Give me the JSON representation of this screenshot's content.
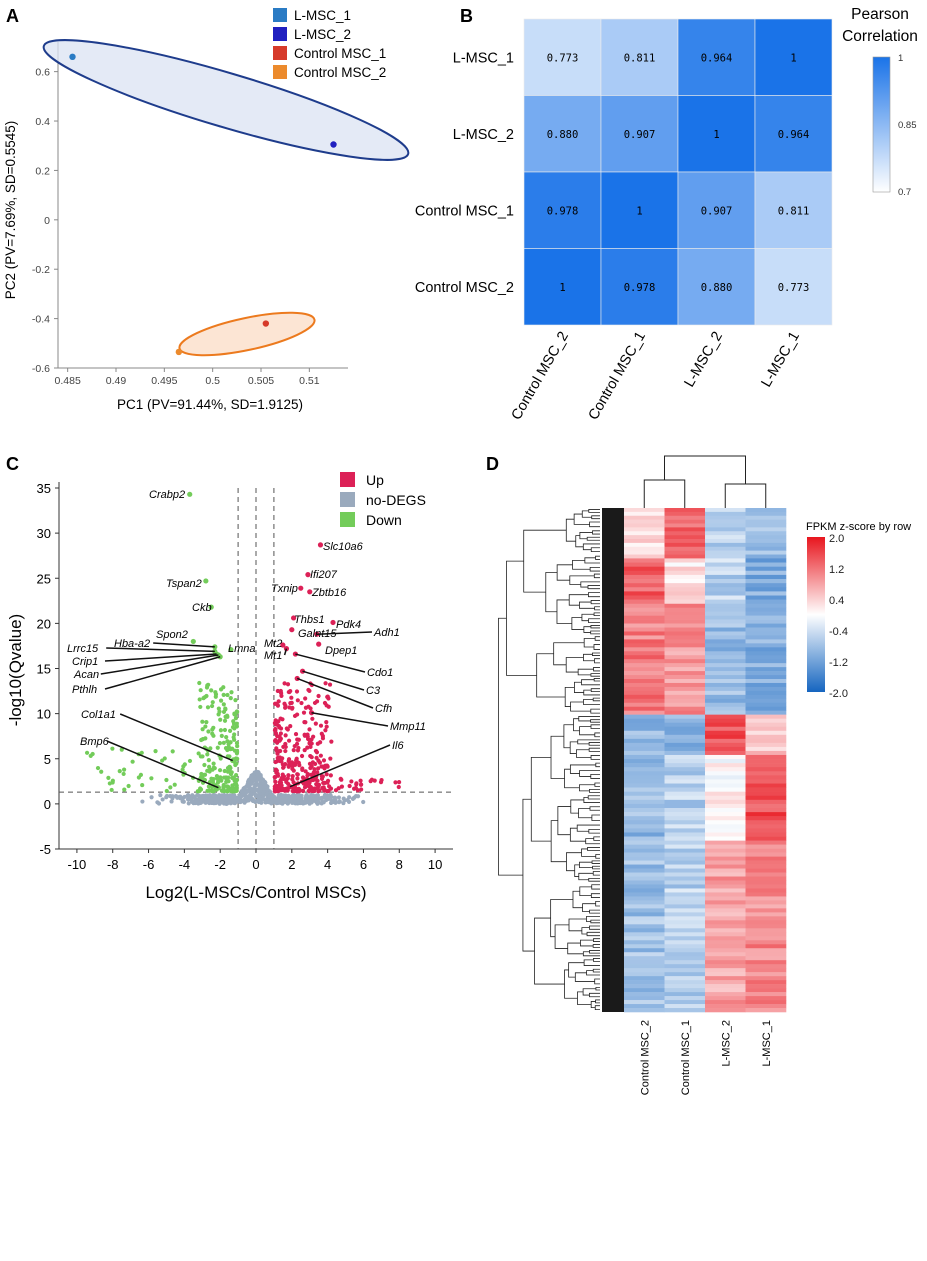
{
  "chart_data": [
    {
      "panel": "A",
      "type": "scatter",
      "xlabel": "PC1 (PV=91.44%, SD=1.9125)",
      "ylabel": "PC2 (PV=7.69%, SD=0.5545)",
      "xlim": [
        0.484,
        0.514
      ],
      "ylim": [
        -0.6,
        0.72
      ],
      "xticks": [
        "0.485",
        "0.49",
        "0.495",
        "0.5",
        "0.505",
        "0.51"
      ],
      "xtick_values": [
        0.485,
        0.49,
        0.495,
        0.5,
        0.505,
        0.51
      ],
      "yticks": [
        "0.6",
        "0.4",
        "0.2",
        "0",
        "-0.2",
        "-0.4",
        "-0.6"
      ],
      "ytick_values": [
        0.6,
        0.4,
        0.2,
        0,
        -0.2,
        -0.4,
        -0.6
      ],
      "series": [
        {
          "name": "L-MSC_1",
          "color": "#2a7bc4",
          "x": 0.4855,
          "y": 0.66
        },
        {
          "name": "L-MSC_2",
          "color": "#2020c0",
          "x": 0.5125,
          "y": 0.305
        },
        {
          "name": "Control MSC_1",
          "color": "#d63a2a",
          "x": 0.5055,
          "y": -0.42
        },
        {
          "name": "Control MSC_2",
          "color": "#ec8a2c",
          "x": 0.4965,
          "y": -0.535
        }
      ]
    },
    {
      "panel": "B",
      "type": "heatmap",
      "title": "Pearson\nCorrelation",
      "title_lines": [
        "Pearson",
        "Correlation"
      ],
      "rows": [
        "L-MSC_1",
        "L-MSC_2",
        "Control MSC_1",
        "Control MSC_2"
      ],
      "columns": [
        "Control MSC_2",
        "Control MSC_1",
        "L-MSC_2",
        "L-MSC_1"
      ],
      "values": [
        [
          0.773,
          0.811,
          0.964,
          1
        ],
        [
          0.88,
          0.907,
          1,
          0.964
        ],
        [
          0.978,
          1,
          0.907,
          0.811
        ],
        [
          1,
          0.978,
          0.88,
          0.773
        ]
      ],
      "labels": [
        [
          "0.773",
          "0.811",
          "0.964",
          "1"
        ],
        [
          "0.880",
          "0.907",
          "1",
          "0.964"
        ],
        [
          "0.978",
          "1",
          "0.907",
          "0.811"
        ],
        [
          "1",
          "0.978",
          "0.880",
          "0.773"
        ]
      ],
      "color_range": [
        0.7,
        1
      ],
      "colorbar_ticks": [
        "1",
        "0.85",
        "0.7"
      ]
    },
    {
      "panel": "C",
      "type": "scatter",
      "xlabel": "Log2(L-MSCs/Control MSCs)",
      "ylabel": "-log10(Qvalue)",
      "xlim": [
        -11,
        11
      ],
      "ylim": [
        -5,
        35
      ],
      "xticks": [
        "-10",
        "-8",
        "-6",
        "-4",
        "-2",
        "0",
        "2",
        "4",
        "6",
        "8",
        "10"
      ],
      "xtick_values": [
        -10,
        -8,
        -6,
        -4,
        -2,
        0,
        2,
        4,
        6,
        8,
        10
      ],
      "yticks": [
        "35",
        "30",
        "25",
        "20",
        "15",
        "10",
        "5",
        "0",
        "-5"
      ],
      "ytick_values": [
        35,
        30,
        25,
        20,
        15,
        10,
        5,
        0,
        -5
      ],
      "legend": [
        {
          "name": "Up",
          "color": "#dc2157"
        },
        {
          "name": "no-DEGS",
          "color": "#9aaabd"
        },
        {
          "name": "Down",
          "color": "#73cc5a"
        }
      ],
      "threshold_lines_x": [
        -1,
        0,
        1
      ],
      "threshold_line_y": 1.3,
      "genes": [
        {
          "gene": "Crabp2",
          "x": -3.7,
          "y": 34.3,
          "group": "Down"
        },
        {
          "gene": "Tspan2",
          "x": -2.8,
          "y": 24.7,
          "group": "Down"
        },
        {
          "gene": "Ckb",
          "x": -2.5,
          "y": 21.8,
          "group": "Down"
        },
        {
          "gene": "Spon2",
          "x": -3.5,
          "y": 18.0,
          "group": "Down"
        },
        {
          "gene": "Hba-a2",
          "x": -2.3,
          "y": 17.4,
          "group": "Down"
        },
        {
          "gene": "Lrrc15",
          "x": -2.3,
          "y": 16.9,
          "group": "Down"
        },
        {
          "gene": "Crip1",
          "x": -2.2,
          "y": 16.6,
          "group": "Down"
        },
        {
          "gene": "Acan",
          "x": -2.1,
          "y": 16.5,
          "group": "Down"
        },
        {
          "gene": "Pthlh",
          "x": -2.0,
          "y": 16.3,
          "group": "Down"
        },
        {
          "gene": "Lmna",
          "x": -1.4,
          "y": 17.1,
          "group": "Down"
        },
        {
          "gene": "Col1a1",
          "x": -1.3,
          "y": 4.8,
          "group": "Down"
        },
        {
          "gene": "Bmp6",
          "x": -2.1,
          "y": 1.8,
          "group": "Down"
        },
        {
          "gene": "Slc10a6",
          "x": 3.6,
          "y": 28.7,
          "group": "Up"
        },
        {
          "gene": "Ifi207",
          "x": 2.9,
          "y": 25.4,
          "group": "Up"
        },
        {
          "gene": "Txnip",
          "x": 2.5,
          "y": 23.9,
          "group": "Up"
        },
        {
          "gene": "Zbtb16",
          "x": 3.0,
          "y": 23.5,
          "group": "Up"
        },
        {
          "gene": "Thbs1",
          "x": 2.1,
          "y": 20.6,
          "group": "Up"
        },
        {
          "gene": "Pdk4",
          "x": 4.3,
          "y": 20.1,
          "group": "Up"
        },
        {
          "gene": "Galnt15",
          "x": 2.0,
          "y": 19.3,
          "group": "Up"
        },
        {
          "gene": "Adh1",
          "x": 3.4,
          "y": 18.8,
          "group": "Up"
        },
        {
          "gene": "Mt2",
          "x": 1.5,
          "y": 17.6,
          "group": "Up"
        },
        {
          "gene": "Dpep1",
          "x": 3.5,
          "y": 17.7,
          "group": "Up"
        },
        {
          "gene": "Mt1",
          "x": 1.7,
          "y": 17.2,
          "group": "Up"
        },
        {
          "gene": "Cdo1",
          "x": 2.2,
          "y": 16.6,
          "group": "Up"
        },
        {
          "gene": "C3",
          "x": 2.6,
          "y": 14.7,
          "group": "Up"
        },
        {
          "gene": "Cfh",
          "x": 2.3,
          "y": 13.9,
          "group": "Up"
        },
        {
          "gene": "Mmp11",
          "x": 3.1,
          "y": 10.1,
          "group": "Up"
        },
        {
          "gene": "Il6",
          "x": 1.9,
          "y": 1.9,
          "group": "Up"
        }
      ]
    },
    {
      "panel": "D",
      "type": "heatmap",
      "title": "FPKM z-score by row",
      "columns": [
        "Control MSC_2",
        "Control MSC_1",
        "L-MSC_2",
        "L-MSC_1"
      ],
      "color_range": [
        -2.0,
        2.0
      ],
      "colorbar_ticks": [
        "2.0",
        "1.2",
        "0.4",
        "-0.4",
        "-1.2",
        "-2.0"
      ],
      "row_blocks": [
        {
          "rows_fraction": 0.1,
          "zscores": [
            0.3,
            1.3,
            -0.6,
            -0.9
          ]
        },
        {
          "rows_fraction": 0.09,
          "zscores": [
            1.4,
            0.2,
            -0.6,
            -1.1
          ]
        },
        {
          "rows_fraction": 0.22,
          "zscores": [
            1.1,
            0.9,
            -0.9,
            -1.0
          ]
        },
        {
          "rows_fraction": 0.08,
          "zscores": [
            -0.9,
            -1.0,
            1.5,
            0.4
          ]
        },
        {
          "rows_fraction": 0.17,
          "zscores": [
            -0.9,
            -0.6,
            0.1,
            1.5
          ]
        },
        {
          "rows_fraction": 0.34,
          "zscores": [
            -0.8,
            -0.6,
            0.8,
            1.0
          ]
        }
      ]
    }
  ],
  "panel_letters": [
    "A",
    "B",
    "C",
    "D"
  ]
}
